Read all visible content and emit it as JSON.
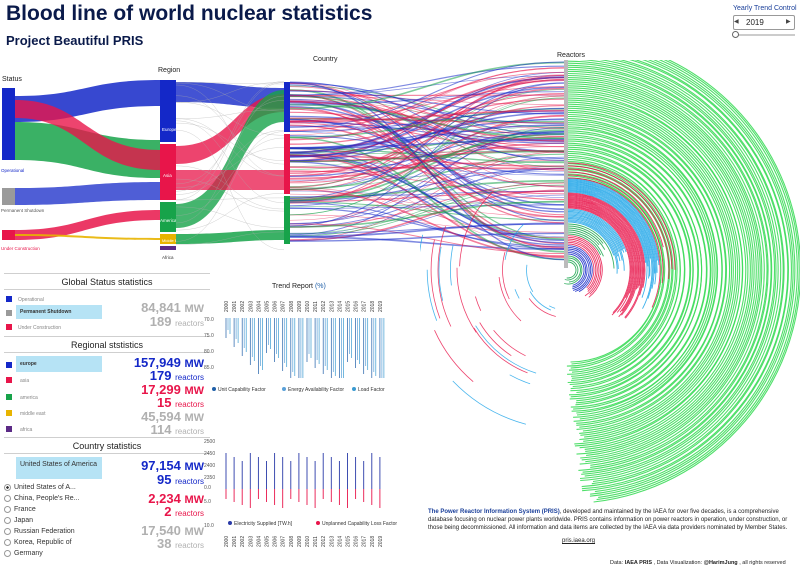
{
  "header": {
    "title": "Blood line of world nuclear statistics",
    "subtitle": "Project Beautiful PRIS"
  },
  "trend_control": {
    "label": "Yearly Trend Control",
    "selected_year": "2019"
  },
  "sankey": {
    "column_headers": {
      "status": "Status",
      "region": "Region",
      "country": "Country",
      "reactors": "Reactors"
    },
    "status_labels": [
      "Operational",
      "Permanent Shutdown",
      "Under Construction"
    ],
    "region_labels": [
      "Europe",
      "Asia",
      "America",
      "Middle East",
      "Africa"
    ]
  },
  "global_status": {
    "title": "Global Status statistics",
    "items": [
      {
        "label": "Operational",
        "color": "#1428c8"
      },
      {
        "label": "Permanent Shutdown",
        "color": "#9a9a9a",
        "selected": true
      },
      {
        "label": "Under Construction",
        "color": "#e8154a"
      }
    ],
    "mw": "84,841",
    "mw_unit": "MW",
    "reactors": "189",
    "reactors_unit": "reactors"
  },
  "regional": {
    "title": "Regional ststistics",
    "items": [
      {
        "label": "europe",
        "color": "#1428c8",
        "selected": true
      },
      {
        "label": "asia",
        "color": "#e8154a"
      },
      {
        "label": "america",
        "color": "#17a34a"
      },
      {
        "label": "middle east",
        "color": "#e8b400"
      },
      {
        "label": "africa",
        "color": "#5b2a86"
      }
    ],
    "europe_mw": "157,949",
    "europe_reactors": "179",
    "asia_mw": "17,299",
    "asia_reactors": "15",
    "other_mw": "45,594",
    "other_reactors": "114",
    "mw_unit": "MW",
    "reactors_unit": "reactors"
  },
  "country": {
    "title": "Country statistics",
    "selected_label": "United States of America",
    "list": [
      "United States of A...",
      "China, People's Re...",
      "France",
      "Japan",
      "Russian Federation",
      "Korea, Republic of",
      "Germany"
    ],
    "selected_index": 0,
    "usa_mw": "97,154",
    "usa_reactors": "95",
    "china_mw": "2,234",
    "china_reactors": "2",
    "other_mw": "17,540",
    "other_reactors": "38",
    "mw_unit": "MW",
    "reactors_unit": "reactors"
  },
  "trend_report": {
    "title": "Trend Report",
    "title_unit": "(%)",
    "years": [
      "2000",
      "2001",
      "2002",
      "2003",
      "2004",
      "2005",
      "2006",
      "2007",
      "2008",
      "2009",
      "2010",
      "2011",
      "2012",
      "2013",
      "2014",
      "2015",
      "2016",
      "2017",
      "2018",
      "2019"
    ],
    "y_ticks_top": [
      "70.0",
      "75.0",
      "80.0",
      "85.0"
    ],
    "y_ticks_bottom": [
      "2500",
      "2450",
      "2400",
      "2350",
      "0.0",
      "5.0",
      "10.0"
    ],
    "legend_top": [
      {
        "label": "Unit Capability Factor",
        "color": "#1f5fa8"
      },
      {
        "label": "Energy Availability Factor",
        "color": "#5aa0d8"
      },
      {
        "label": "Load Factor",
        "color": "#3a9ad0"
      }
    ],
    "legend_bottom": [
      {
        "label": "Electricity Supplied [TW.h]",
        "color": "#2a3aa8"
      },
      {
        "label": "Unplanned Capability Loss Factor",
        "color": "#e8154a"
      }
    ]
  },
  "pris": {
    "lead": "The Power Reactor Information System (PRIS)",
    "body": ", developed and maintained by the IAEA for over five decades, is a comprehensive database focusing on nuclear power plants worldwide. PRIS contains information on power reactors in operation, under construction, or those being decommissioned. All information and data items are collected by the IAEA via data providers nominated by Member States.",
    "link": "pris.iaea.org"
  },
  "footer": {
    "data_prefix": "Data: ",
    "data_source": "IAEA PRIS",
    "mid": " ,  Data Visualization: ",
    "author": "@HarimJung",
    "suffix": " , all rights reserved"
  },
  "colors": {
    "operational": "#1428c8",
    "shutdown": "#9a9a9a",
    "construction": "#e8154a",
    "europe": "#1428c8",
    "asia": "#e8154a",
    "america": "#17a34a",
    "middle_east": "#e8b400",
    "africa": "#5b2a86",
    "reactors": "#3ddc5a"
  }
}
